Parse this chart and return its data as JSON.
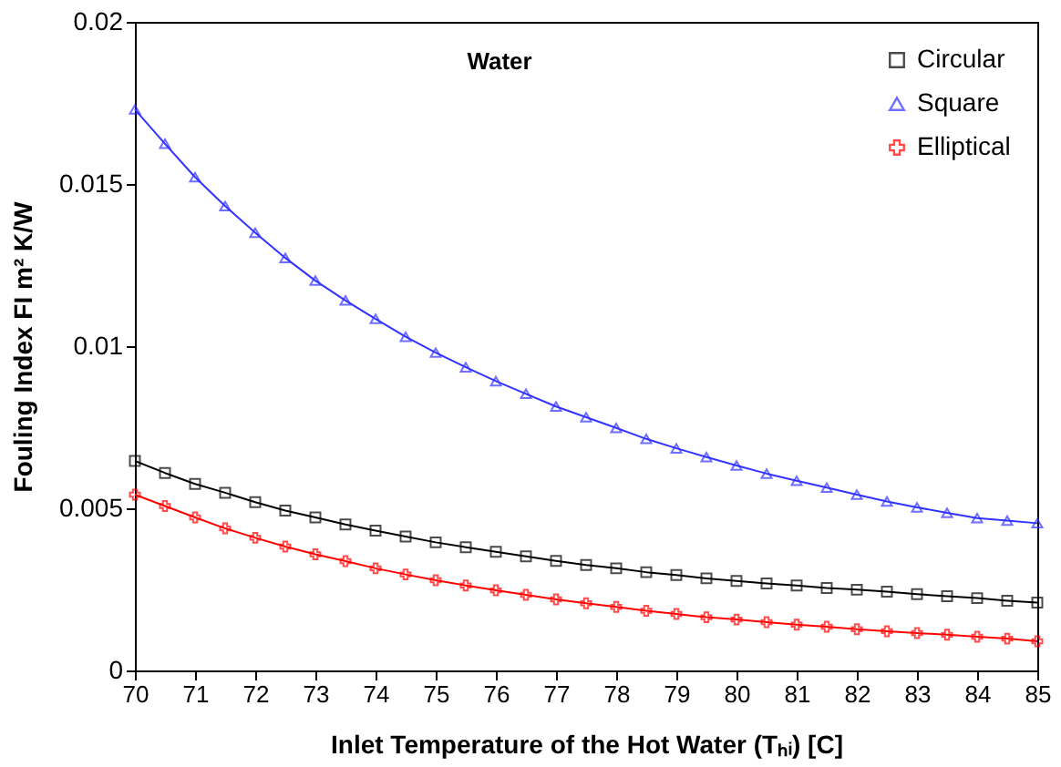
{
  "chart_data": {
    "type": "line",
    "xlabel": "Inlet Temperature of the Hot Water (Tₕᵢ) [C]",
    "ylabel": "Fouling Index  FI  m² K/W",
    "annotations": [
      "Water"
    ],
    "x": [
      70,
      70.5,
      71,
      71.5,
      72,
      72.5,
      73,
      73.5,
      74,
      74.5,
      75,
      75.5,
      76,
      76.5,
      77,
      77.5,
      78,
      78.5,
      79,
      79.5,
      80,
      80.5,
      81,
      81.5,
      82,
      82.5,
      83,
      83.5,
      84,
      84.5,
      85
    ],
    "series": [
      {
        "name": "Circular",
        "color": "#000000",
        "marker": "square",
        "values": [
          0.00646,
          0.00609,
          0.00575,
          0.00548,
          0.00519,
          0.00493,
          0.00472,
          0.0045,
          0.00431,
          0.00413,
          0.00395,
          0.0038,
          0.00366,
          0.00352,
          0.00338,
          0.00325,
          0.00315,
          0.00303,
          0.00294,
          0.00284,
          0.00276,
          0.00268,
          0.00262,
          0.00254,
          0.00249,
          0.00243,
          0.00235,
          0.00229,
          0.00223,
          0.00215,
          0.00209
        ]
      },
      {
        "name": "Square",
        "color": "#3333ff",
        "marker": "triangle",
        "values": [
          0.0173,
          0.01624,
          0.01521,
          0.01432,
          0.0135,
          0.01272,
          0.01202,
          0.01141,
          0.01084,
          0.01029,
          0.0098,
          0.00935,
          0.00892,
          0.00853,
          0.00814,
          0.00781,
          0.00748,
          0.00714,
          0.00685,
          0.00658,
          0.00632,
          0.00607,
          0.00585,
          0.00564,
          0.00542,
          0.00521,
          0.00503,
          0.00486,
          0.0047,
          0.00462,
          0.00454
        ]
      },
      {
        "name": "Elliptical",
        "color": "#ff0000",
        "marker": "cross",
        "values": [
          0.00542,
          0.00507,
          0.00472,
          0.00438,
          0.00409,
          0.00382,
          0.00358,
          0.00337,
          0.00315,
          0.00296,
          0.00278,
          0.00262,
          0.00247,
          0.00233,
          0.00219,
          0.00207,
          0.00196,
          0.00184,
          0.00174,
          0.00164,
          0.00157,
          0.00149,
          0.00141,
          0.00135,
          0.00127,
          0.00121,
          0.00115,
          0.0011,
          0.00104,
          0.00098,
          0.0009
        ]
      }
    ],
    "xlim": [
      70,
      85
    ],
    "xticks": [
      70,
      71,
      72,
      73,
      74,
      75,
      76,
      77,
      78,
      79,
      80,
      81,
      82,
      83,
      84,
      85
    ],
    "ylim": [
      0,
      0.02
    ],
    "yticks": [
      0,
      0.005,
      0.01,
      0.015,
      0.02
    ],
    "grid": false,
    "legend": "top right",
    "line_style": "solid"
  }
}
